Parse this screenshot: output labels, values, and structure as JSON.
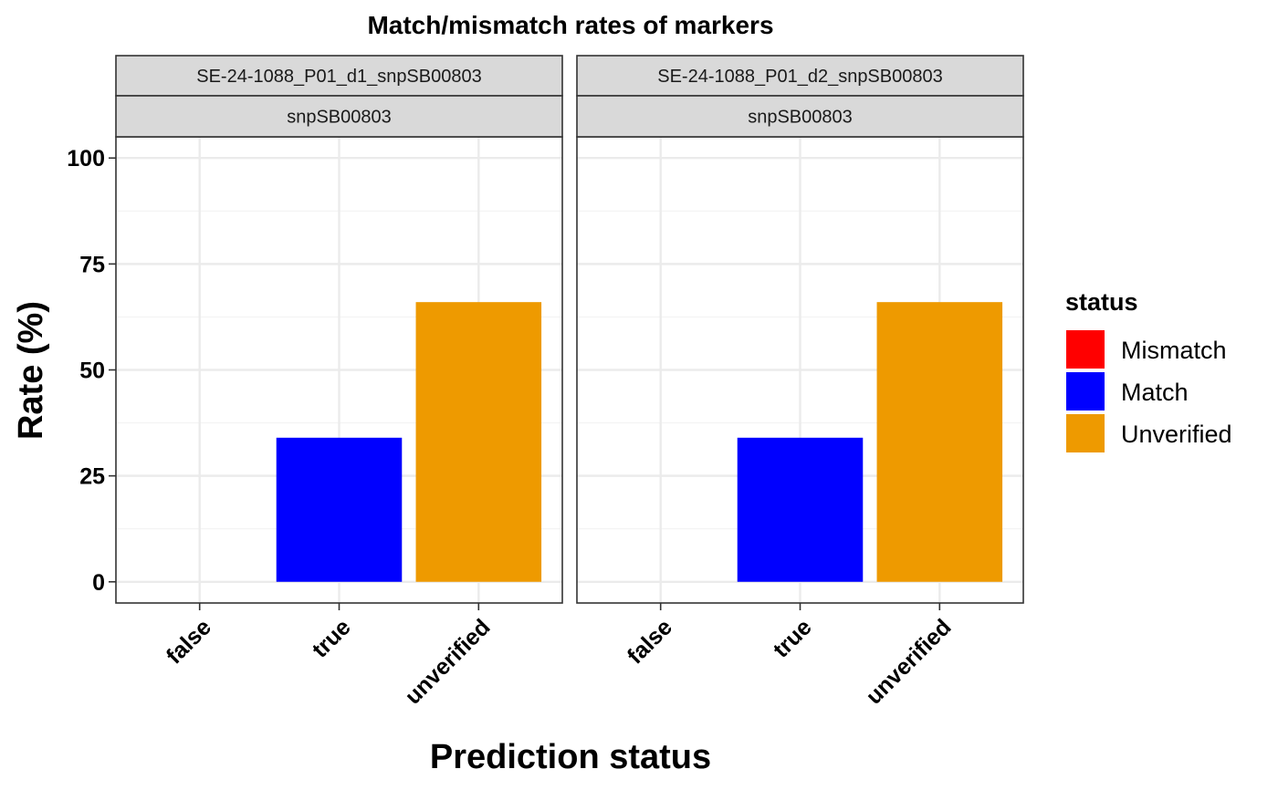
{
  "chart_data": {
    "type": "bar",
    "title": "Match/mismatch rates of markers",
    "xlabel": "Prediction status",
    "ylabel": "Rate (%)",
    "categories": [
      "false",
      "true",
      "unverified"
    ],
    "ylim": [
      -5,
      105
    ],
    "yticks": [
      0,
      25,
      50,
      75,
      100
    ],
    "grid": true,
    "legend": {
      "title": "status",
      "position": "right",
      "entries": [
        {
          "name": "Mismatch",
          "color": "#ff0000"
        },
        {
          "name": "Match",
          "color": "#0000ff"
        },
        {
          "name": "Unverified",
          "color": "#ee9a00"
        }
      ]
    },
    "panels": [
      {
        "strip_top": "SE-24-1088_P01_d1_snpSB00803",
        "strip_bottom": "snpSB00803",
        "bars": [
          {
            "category": "false",
            "status": "Mismatch",
            "value": 0
          },
          {
            "category": "true",
            "status": "Match",
            "value": 34
          },
          {
            "category": "unverified",
            "status": "Unverified",
            "value": 66
          }
        ]
      },
      {
        "strip_top": "SE-24-1088_P01_d2_snpSB00803",
        "strip_bottom": "snpSB00803",
        "bars": [
          {
            "category": "false",
            "status": "Mismatch",
            "value": 0
          },
          {
            "category": "true",
            "status": "Match",
            "value": 34
          },
          {
            "category": "unverified",
            "status": "Unverified",
            "value": 66
          }
        ]
      }
    ]
  },
  "colors": {
    "panel_border": "#333333",
    "strip_fill": "#d9d9d9",
    "grid_major": "#ebebeb",
    "grid_minor": "#f3f3f3"
  }
}
